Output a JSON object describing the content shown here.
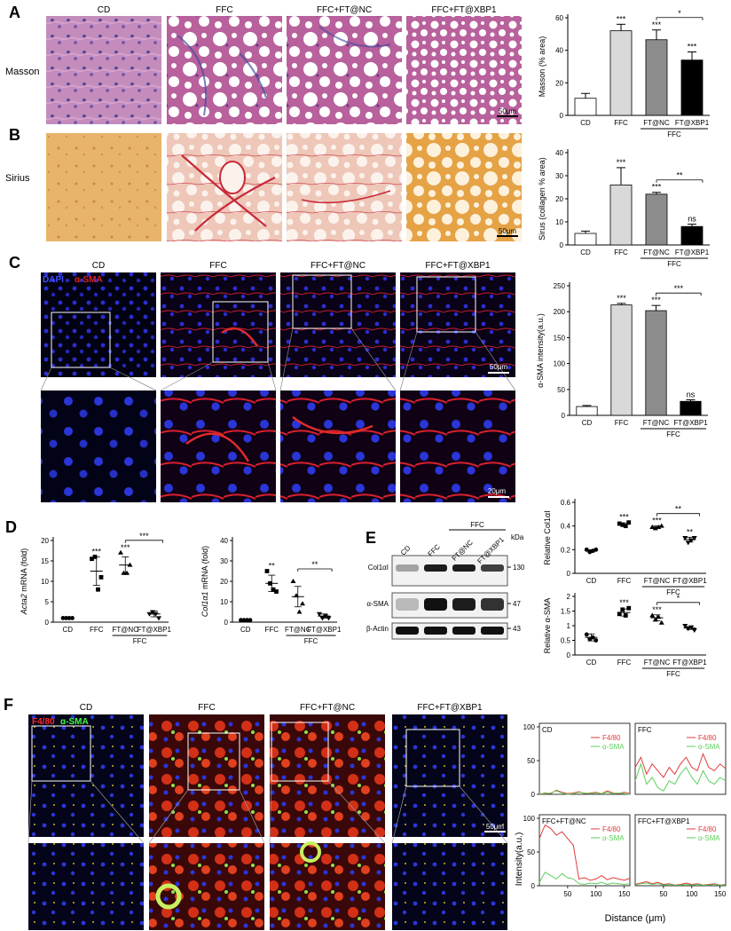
{
  "panels": {
    "A": {
      "letter": "A",
      "row_label": "Masson"
    },
    "B": {
      "letter": "B",
      "row_label": "Sirius"
    },
    "C": {
      "letter": "C",
      "stain_dapi": "DAPI",
      "stain_marker": "α-SMA"
    },
    "D": {
      "letter": "D"
    },
    "E": {
      "letter": "E",
      "kda": "kDa",
      "blot_rows": [
        "Col1αI",
        "α-SMA",
        "β-Actin"
      ],
      "sizes": [
        "130",
        "47",
        "43"
      ],
      "lane_labels": [
        "CD",
        "FFC",
        "FT@NC",
        "FT@XBP1"
      ],
      "bar_label": "FFC"
    },
    "F": {
      "letter": "F",
      "stain_marker": "F4/80",
      "stain_alpha": "α-SMA"
    }
  },
  "group_titles": [
    "CD",
    "FFC",
    "FFC+FT@NC",
    "FFC+FT@XBP1"
  ],
  "scale_bars": {
    "a": "50μm",
    "b": "50μm",
    "c": "50μm",
    "c_zoom": "20μm",
    "f": "50μm"
  },
  "chart_data": [
    {
      "id": "masson",
      "type": "bar",
      "ylabel": "Masson (% area)",
      "categories": [
        "CD",
        "FFC",
        "FT@NC",
        "FT@XBP1"
      ],
      "group_label": "FFC",
      "values": [
        10.5,
        52,
        46.5,
        34
      ],
      "errors": [
        3,
        4,
        6,
        5
      ],
      "ylim": [
        0,
        60
      ],
      "yticks": [
        0,
        20,
        40,
        60
      ],
      "colors": [
        "#ffffff",
        "#d9d9d9",
        "#8c8c8c",
        "#000000"
      ],
      "sig": [
        "",
        "***",
        "***",
        "***"
      ],
      "bracket": {
        "from": 2,
        "to": 3,
        "label": "*"
      }
    },
    {
      "id": "sirius",
      "type": "bar",
      "ylabel": "Sirus  (collagen % area)",
      "categories": [
        "CD",
        "FFC",
        "FT@NC",
        "FT@XBP1"
      ],
      "group_label": "FFC",
      "values": [
        5,
        26,
        22,
        8
      ],
      "errors": [
        1,
        7.5,
        0.8,
        1
      ],
      "ylim": [
        0,
        40
      ],
      "yticks": [
        0,
        10,
        20,
        30,
        40
      ],
      "colors": [
        "#ffffff",
        "#d9d9d9",
        "#8c8c8c",
        "#000000"
      ],
      "sig": [
        "",
        "***",
        "***",
        "ns"
      ],
      "bracket": {
        "from": 2,
        "to": 3,
        "label": "**"
      }
    },
    {
      "id": "asma",
      "type": "bar",
      "ylabel": "α-SMA intensity(a.u.)",
      "categories": [
        "CD",
        "FFC",
        "FT@NC",
        "FT@XBP1"
      ],
      "group_label": "FFC",
      "values": [
        17,
        213,
        202,
        27
      ],
      "errors": [
        2,
        3,
        10,
        3
      ],
      "ylim": [
        0,
        250
      ],
      "yticks": [
        0,
        50,
        100,
        150,
        200,
        250
      ],
      "colors": [
        "#ffffff",
        "#d9d9d9",
        "#8c8c8c",
        "#000000"
      ],
      "sig": [
        "",
        "***",
        "***",
        "ns"
      ],
      "bracket": {
        "from": 2,
        "to": 3,
        "label": "***"
      }
    },
    {
      "id": "acta2",
      "type": "scatter",
      "ylabel": "Acta2 mRNA (fold)",
      "ylabel_italic": "Acta2",
      "ylabel_rest": " mRNA (fold)",
      "categories": [
        "CD",
        "FFC",
        "FT@NC",
        "FT@XBP1"
      ],
      "group_label": "FFC",
      "points": [
        [
          1,
          1,
          1,
          1
        ],
        [
          15.5,
          16,
          8,
          11
        ],
        [
          17,
          12,
          12,
          14
        ],
        [
          2,
          2.5,
          2,
          1
        ]
      ],
      "means": [
        1,
        12.5,
        14,
        2
      ],
      "sds": [
        0.1,
        3.5,
        2,
        0.7
      ],
      "markers": [
        "circle",
        "square",
        "triangle",
        "tri-down"
      ],
      "ylim": [
        0,
        20
      ],
      "yticks": [
        0,
        5,
        10,
        15,
        20
      ],
      "sig": [
        "",
        "***",
        "***",
        ""
      ],
      "bracket": {
        "from": 2,
        "to": 3,
        "label": "***"
      }
    },
    {
      "id": "col1a1",
      "type": "scatter",
      "ylabel": "Col1a1 mRNA (fold)",
      "ylabel_italic": "Col1α1",
      "ylabel_rest": " mRNA (fold)",
      "categories": [
        "CD",
        "FFC",
        "FT@NC",
        "FT@XBP1"
      ],
      "group_label": "FFC",
      "points": [
        [
          1,
          1,
          1,
          1
        ],
        [
          25,
          19,
          16,
          15
        ],
        [
          20,
          13,
          5,
          9
        ],
        [
          4,
          2,
          3,
          2
        ]
      ],
      "means": [
        1,
        19,
        12.5,
        3
      ],
      "sds": [
        0.2,
        4,
        5,
        1
      ],
      "markers": [
        "circle",
        "square",
        "triangle",
        "tri-down"
      ],
      "ylim": [
        0,
        40
      ],
      "yticks": [
        0,
        10,
        20,
        30,
        40
      ],
      "sig": [
        "",
        "**",
        "",
        ""
      ],
      "bracket": {
        "from": 2,
        "to": 3,
        "label": "**"
      }
    },
    {
      "id": "rel_col1",
      "type": "scatter",
      "ylabel": "Relative  Col1αI",
      "categories": [
        "CD",
        "FFC",
        "FT@NC",
        "FT@XBP1"
      ],
      "group_label": "FFC",
      "points": [
        [
          0.2,
          0.18,
          0.19,
          0.2
        ],
        [
          0.42,
          0.41,
          0.4,
          0.43
        ],
        [
          0.39,
          0.38,
          0.39,
          0.4
        ],
        [
          0.3,
          0.26,
          0.28,
          0.3
        ]
      ],
      "means": [
        0.19,
        0.415,
        0.39,
        0.285
      ],
      "sds": [
        0.01,
        0.012,
        0.01,
        0.02
      ],
      "markers": [
        "circle",
        "square",
        "triangle",
        "tri-down"
      ],
      "ylim": [
        0,
        0.6
      ],
      "yticks": [
        0,
        0.2,
        0.4,
        0.6
      ],
      "sig": [
        "",
        "***",
        "***",
        "**"
      ],
      "bracket": {
        "from": 2,
        "to": 3,
        "label": "**"
      }
    },
    {
      "id": "rel_asma",
      "type": "scatter",
      "ylabel": "Relative α-SMA",
      "categories": [
        "CD",
        "FFC",
        "FT@NC",
        "FT@XBP1"
      ],
      "group_label": "FFC",
      "points": [
        [
          0.7,
          0.55,
          0.6,
          0.5
        ],
        [
          1.4,
          1.55,
          1.35,
          1.6
        ],
        [
          1.35,
          1.2,
          1.3,
          1.1
        ],
        [
          1.0,
          0.9,
          0.95,
          0.85
        ]
      ],
      "means": [
        0.6,
        1.45,
        1.27,
        0.92
      ],
      "sds": [
        0.12,
        0.12,
        0.1,
        0.05
      ],
      "markers": [
        "circle",
        "square",
        "triangle",
        "tri-down"
      ],
      "ylim": [
        0,
        2.0
      ],
      "yticks": [
        0,
        0.5,
        1.0,
        1.5,
        2.0
      ],
      "sig": [
        "",
        "***",
        "***",
        ""
      ],
      "bracket": {
        "from": 2,
        "to": 3,
        "label": "*"
      }
    },
    {
      "id": "profile_cd",
      "type": "line",
      "label": "CD",
      "x": [
        0,
        10,
        20,
        30,
        40,
        50,
        60,
        70,
        80,
        90,
        100,
        110,
        120,
        130,
        140,
        150,
        160
      ],
      "series": [
        {
          "name": "F4/80",
          "color": "#e23b3b",
          "values": [
            0,
            2,
            1,
            6,
            3,
            1,
            2,
            4,
            1,
            2,
            3,
            1,
            5,
            2,
            1,
            3,
            1
          ]
        },
        {
          "name": "α-SMA",
          "color": "#5ccf5c",
          "values": [
            1,
            1,
            2,
            5,
            2,
            0,
            1,
            3,
            2,
            1,
            2,
            1,
            3,
            1,
            2,
            1,
            0
          ]
        }
      ]
    },
    {
      "id": "profile_ffc",
      "type": "line",
      "label": "FFC",
      "x": [
        0,
        10,
        20,
        30,
        40,
        50,
        60,
        70,
        80,
        90,
        100,
        110,
        120,
        130,
        140,
        150,
        160
      ],
      "series": [
        {
          "name": "F4/80",
          "color": "#e23b3b",
          "values": [
            40,
            55,
            30,
            45,
            35,
            25,
            40,
            30,
            45,
            55,
            40,
            35,
            60,
            40,
            35,
            45,
            38
          ]
        },
        {
          "name": "α-SMA",
          "color": "#5ccf5c",
          "values": [
            20,
            45,
            15,
            25,
            10,
            5,
            20,
            15,
            30,
            40,
            25,
            15,
            35,
            20,
            15,
            25,
            20
          ]
        }
      ]
    },
    {
      "id": "profile_nc",
      "type": "line",
      "label": "FFC+FT@NC",
      "x": [
        0,
        10,
        20,
        30,
        40,
        50,
        60,
        70,
        80,
        90,
        100,
        110,
        120,
        130,
        140,
        150,
        160
      ],
      "series": [
        {
          "name": "F4/80",
          "color": "#e23b3b",
          "values": [
            70,
            90,
            85,
            75,
            80,
            70,
            60,
            10,
            12,
            8,
            10,
            15,
            9,
            12,
            10,
            8,
            11
          ]
        },
        {
          "name": "α-SMA",
          "color": "#5ccf5c",
          "values": [
            5,
            20,
            15,
            10,
            18,
            12,
            10,
            3,
            2,
            4,
            3,
            5,
            2,
            4,
            3,
            2,
            3
          ]
        }
      ]
    },
    {
      "id": "profile_xbp1",
      "type": "line",
      "label": "FFC+FT@XBP1",
      "x": [
        0,
        10,
        20,
        30,
        40,
        50,
        60,
        70,
        80,
        90,
        100,
        110,
        120,
        130,
        140,
        150,
        160
      ],
      "series": [
        {
          "name": "F4/80",
          "color": "#e23b3b",
          "values": [
            2,
            4,
            6,
            3,
            5,
            2,
            3,
            1,
            2,
            4,
            2,
            3,
            1,
            2,
            3,
            1,
            2
          ]
        },
        {
          "name": "α-SMA",
          "color": "#5ccf5c",
          "values": [
            1,
            3,
            4,
            2,
            3,
            1,
            2,
            1,
            1,
            2,
            1,
            2,
            1,
            1,
            2,
            1,
            1
          ]
        }
      ]
    }
  ],
  "profiles_axis": {
    "ylabel": "Intensity(a.u.)",
    "xlabel": "Distance (μm)",
    "yticks": [
      0,
      50,
      100
    ],
    "xticks": [
      50,
      100,
      150
    ],
    "ylim": [
      0,
      100
    ],
    "xlim": [
      0,
      160
    ]
  }
}
